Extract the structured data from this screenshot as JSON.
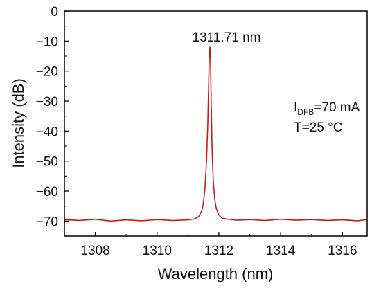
{
  "chart_data": {
    "type": "line",
    "title": "",
    "xlabel": "Wavelength (nm)",
    "ylabel": "Intensity (dB)",
    "xlim": [
      1307.0,
      1316.8
    ],
    "ylim": [
      -75,
      0
    ],
    "xticks": [
      1308,
      1310,
      1312,
      1314,
      1316
    ],
    "yticks": [
      0,
      -10,
      -20,
      -30,
      -40,
      -50,
      -60,
      -70
    ],
    "grid": false,
    "legend": "none",
    "series": [
      {
        "color": "#cc1a1a",
        "x": [
          1307.0,
          1307.5,
          1308.0,
          1308.5,
          1309.0,
          1309.5,
          1310.0,
          1310.5,
          1311.0,
          1311.2,
          1311.35,
          1311.45,
          1311.5,
          1311.55,
          1311.6,
          1311.64,
          1311.67,
          1311.69,
          1311.71,
          1311.73,
          1311.75,
          1311.78,
          1311.82,
          1311.87,
          1311.92,
          1312.0,
          1312.1,
          1312.3,
          1312.6,
          1313.0,
          1313.5,
          1314.0,
          1314.5,
          1315.0,
          1315.5,
          1316.0,
          1316.5,
          1316.8
        ],
        "y": [
          -69.5,
          -69.8,
          -69.4,
          -70.0,
          -69.6,
          -69.9,
          -69.5,
          -69.8,
          -69.6,
          -69.3,
          -68.5,
          -66.5,
          -64.0,
          -59.0,
          -50.0,
          -38.0,
          -24.0,
          -15.0,
          -12.0,
          -16.0,
          -30.0,
          -46.0,
          -57.0,
          -63.0,
          -66.0,
          -68.0,
          -69.0,
          -69.4,
          -69.7,
          -69.5,
          -69.8,
          -69.4,
          -69.7,
          -69.5,
          -69.8,
          -69.6,
          -69.9,
          -69.5
        ]
      }
    ],
    "annotations": {
      "peak_label": "1311.71 nm",
      "current_label_main": "I",
      "current_label_sub": "DFB",
      "current_label_value": "=70 mA",
      "temperature_label": "T=25 °C"
    }
  }
}
